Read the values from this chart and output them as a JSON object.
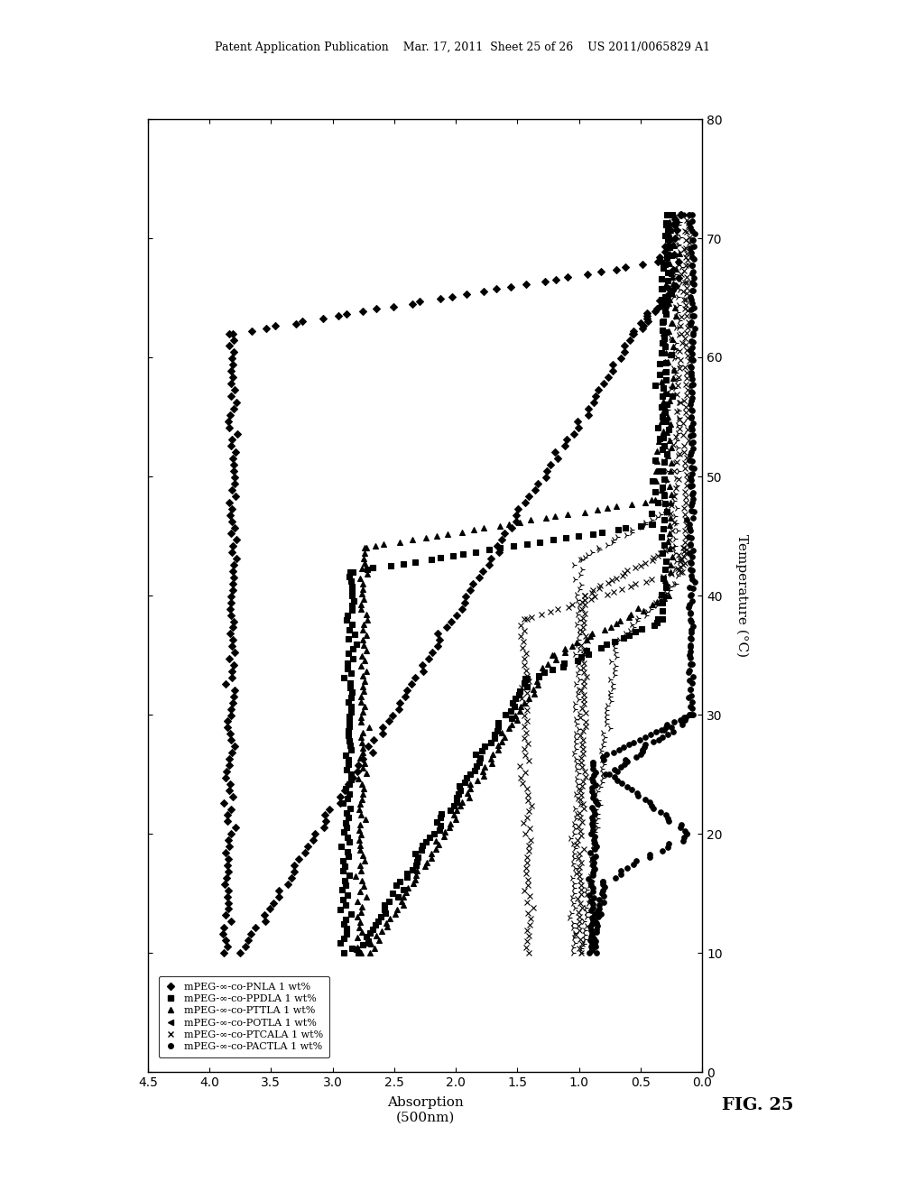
{
  "title_header": "Patent Application Publication    Mar. 17, 2011  Sheet 25 of 26    US 2011/0065829 A1",
  "fig_label": "FIG. 25",
  "xlabel": "Absorption\n(500nm)",
  "ylabel": "Temperature (°C)",
  "xlim": [
    0,
    4.5
  ],
  "ylim": [
    0,
    80
  ],
  "xticks": [
    0.0,
    0.5,
    1.0,
    1.5,
    2.0,
    2.5,
    3.0,
    3.5,
    4.0,
    4.5
  ],
  "yticks": [
    0,
    10,
    20,
    30,
    40,
    50,
    60,
    70,
    80
  ],
  "legend_labels": [
    "mPEG-∞-co-PNLA 1 wt%",
    "mPEG-∞-co-PPDLA 1 wt%",
    "mPEG-∞-co-PTTLA 1 wt%",
    "mPEG-∞-co-POTLA 1 wt%",
    "mPEG-∞-co-PTCALA 1 wt%",
    "mPEG-∞-co-PACTLA 1 wt%"
  ],
  "legend_markers": [
    "D",
    "s",
    "^",
    "4",
    "x",
    "o"
  ],
  "marker_sizes": [
    4,
    4,
    4,
    5,
    5,
    4
  ],
  "bg_color": "#ffffff",
  "line_color": "#000000"
}
